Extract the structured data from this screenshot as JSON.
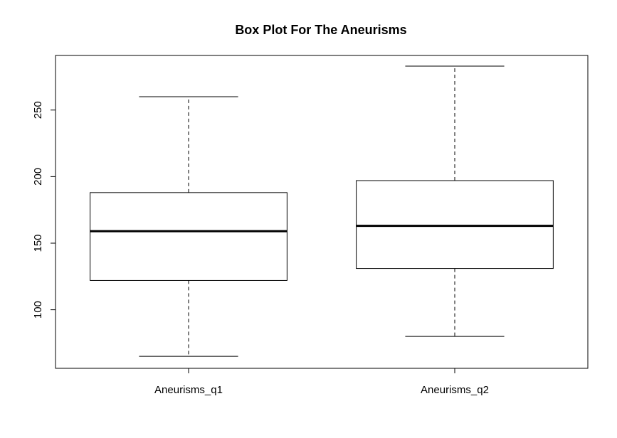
{
  "chart_data": {
    "type": "box",
    "title": "Box Plot For The Aneurisms",
    "xlabel": "",
    "ylabel": "",
    "ylim": [
      56,
      291
    ],
    "yticks": [
      100,
      150,
      200,
      250
    ],
    "grid": false,
    "categories": [
      "Aneurisms_q1",
      "Aneurisms_q2"
    ],
    "boxes": [
      {
        "category": "Aneurisms_q1",
        "min": 65,
        "q1": 122,
        "median": 159,
        "q3": 188,
        "max": 260
      },
      {
        "category": "Aneurisms_q2",
        "min": 80,
        "q1": 131,
        "median": 163,
        "q3": 197,
        "max": 283
      }
    ]
  }
}
